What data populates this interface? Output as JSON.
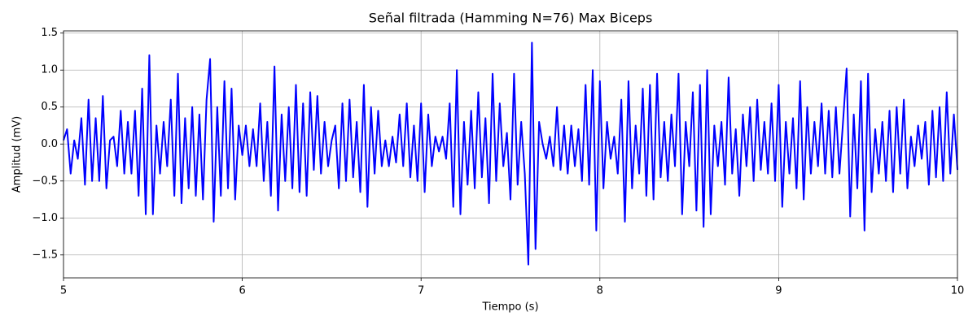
{
  "chart_data": {
    "type": "line",
    "title": "Señal filtrada (Hamming N=76) Max Biceps",
    "x_label": "Tiempo (s)",
    "y_label": "Amplitud (mV)",
    "color": "#0000ff",
    "grid": true,
    "xlim": [
      5,
      10
    ],
    "ylim": [
      -1.81,
      1.53
    ],
    "xticks": [
      5,
      6,
      7,
      8,
      9,
      10
    ],
    "yticks": [
      {
        "value": -1.5,
        "label": "−1.5"
      },
      {
        "value": -1.0,
        "label": "−1.0"
      },
      {
        "value": -0.5,
        "label": "−0.5"
      },
      {
        "value": 0,
        "label": "0.0"
      },
      {
        "value": 0.5,
        "label": "0.5"
      },
      {
        "value": 1.0,
        "label": "1.0"
      },
      {
        "value": 1.5,
        "label": "1.5"
      }
    ],
    "x": [
      5,
      5.02,
      5.04,
      5.06,
      5.08,
      5.1,
      5.12,
      5.14,
      5.16,
      5.18,
      5.2,
      5.22,
      5.24,
      5.26,
      5.28,
      5.3,
      5.32,
      5.34,
      5.36,
      5.38,
      5.4,
      5.42,
      5.44,
      5.46,
      5.48,
      5.5,
      5.52,
      5.54,
      5.56,
      5.58,
      5.6,
      5.62,
      5.64,
      5.66,
      5.68,
      5.7,
      5.72,
      5.74,
      5.76,
      5.78,
      5.8,
      5.82,
      5.84,
      5.86,
      5.88,
      5.9,
      5.92,
      5.94,
      5.96,
      5.98,
      6,
      6.02,
      6.04,
      6.06,
      6.08,
      6.1,
      6.12,
      6.14,
      6.16,
      6.18,
      6.2,
      6.22,
      6.24,
      6.26,
      6.28,
      6.3,
      6.32,
      6.34,
      6.36,
      6.38,
      6.4,
      6.42,
      6.44,
      6.46,
      6.48,
      6.5,
      6.52,
      6.54,
      6.56,
      6.58,
      6.6,
      6.62,
      6.64,
      6.66,
      6.68,
      6.7,
      6.72,
      6.74,
      6.76,
      6.78,
      6.8,
      6.82,
      6.84,
      6.86,
      6.88,
      6.9,
      6.92,
      6.94,
      6.96,
      6.98,
      7,
      7.02,
      7.04,
      7.06,
      7.08,
      7.1,
      7.12,
      7.14,
      7.16,
      7.18,
      7.2,
      7.22,
      7.24,
      7.26,
      7.28,
      7.3,
      7.32,
      7.34,
      7.36,
      7.38,
      7.4,
      7.42,
      7.44,
      7.46,
      7.48,
      7.5,
      7.52,
      7.54,
      7.56,
      7.58,
      7.6,
      7.62,
      7.64,
      7.66,
      7.68,
      7.7,
      7.72,
      7.74,
      7.76,
      7.78,
      7.8,
      7.82,
      7.84,
      7.86,
      7.88,
      7.9,
      7.92,
      7.94,
      7.96,
      7.98,
      8,
      8.02,
      8.04,
      8.06,
      8.08,
      8.1,
      8.12,
      8.14,
      8.16,
      8.18,
      8.2,
      8.22,
      8.24,
      8.26,
      8.28,
      8.3,
      8.32,
      8.34,
      8.36,
      8.38,
      8.4,
      8.42,
      8.44,
      8.46,
      8.48,
      8.5,
      8.52,
      8.54,
      8.56,
      8.58,
      8.6,
      8.62,
      8.64,
      8.66,
      8.68,
      8.7,
      8.72,
      8.74,
      8.76,
      8.78,
      8.8,
      8.82,
      8.84,
      8.86,
      8.88,
      8.9,
      8.92,
      8.94,
      8.96,
      8.98,
      9,
      9.02,
      9.04,
      9.06,
      9.08,
      9.1,
      9.12,
      9.14,
      9.16,
      9.18,
      9.2,
      9.22,
      9.24,
      9.26,
      9.28,
      9.3,
      9.32,
      9.34,
      9.36,
      9.38,
      9.4,
      9.42,
      9.44,
      9.46,
      9.48,
      9.5,
      9.52,
      9.54,
      9.56,
      9.58,
      9.6,
      9.62,
      9.64,
      9.66,
      9.68,
      9.7,
      9.72,
      9.74,
      9.76,
      9.78,
      9.8,
      9.82,
      9.84,
      9.86,
      9.88,
      9.9,
      9.92,
      9.94,
      9.96,
      9.98,
      10
    ],
    "values": [
      0.05,
      0.2,
      -0.4,
      0.05,
      -0.2,
      0.35,
      -0.55,
      0.6,
      -0.5,
      0.35,
      -0.5,
      0.65,
      -0.6,
      0.05,
      0.1,
      -0.3,
      0.45,
      -0.4,
      0.3,
      -0.4,
      0.45,
      -0.7,
      0.75,
      -0.95,
      1.2,
      -0.95,
      0.25,
      -0.4,
      0.3,
      -0.3,
      0.6,
      -0.7,
      0.95,
      -0.8,
      0.35,
      -0.6,
      0.5,
      -0.7,
      0.4,
      -0.75,
      0.6,
      1.15,
      -1.05,
      0.5,
      -0.7,
      0.85,
      -0.6,
      0.75,
      -0.75,
      0.25,
      -0.15,
      0.25,
      -0.3,
      0.2,
      -0.3,
      0.55,
      -0.5,
      0.3,
      -0.7,
      1.05,
      -0.9,
      0.4,
      -0.5,
      0.5,
      -0.6,
      0.8,
      -0.65,
      0.55,
      -0.7,
      0.7,
      -0.35,
      0.65,
      -0.4,
      0.3,
      -0.3,
      0.05,
      0.25,
      -0.6,
      0.55,
      -0.5,
      0.6,
      -0.45,
      0.3,
      -0.65,
      0.8,
      -0.85,
      0.5,
      -0.4,
      0.45,
      -0.3,
      0.05,
      -0.3,
      0.1,
      -0.25,
      0.4,
      -0.3,
      0.55,
      -0.45,
      0.25,
      -0.5,
      0.55,
      -0.65,
      0.4,
      -0.3,
      0.1,
      -0.1,
      0.1,
      -0.2,
      0.55,
      -0.85,
      1.0,
      -0.95,
      0.3,
      -0.55,
      0.45,
      -0.6,
      0.7,
      -0.45,
      0.35,
      -0.8,
      0.95,
      -0.5,
      0.55,
      -0.3,
      0.15,
      -0.75,
      0.95,
      -0.55,
      0.3,
      -0.4,
      -1.63,
      1.37,
      -1.42,
      0.3,
      0.0,
      -0.2,
      0.1,
      -0.3,
      0.5,
      -0.35,
      0.25,
      -0.4,
      0.25,
      -0.3,
      0.2,
      -0.5,
      0.8,
      -0.55,
      1.0,
      -1.17,
      0.85,
      -0.6,
      0.3,
      -0.2,
      0.1,
      -0.4,
      0.6,
      -1.05,
      0.85,
      -0.6,
      0.25,
      -0.4,
      0.75,
      -0.7,
      0.8,
      -0.75,
      0.95,
      -0.45,
      0.3,
      -0.5,
      0.4,
      -0.3,
      0.95,
      -0.95,
      0.3,
      -0.3,
      0.7,
      -0.9,
      0.8,
      -1.12,
      1.0,
      -0.95,
      0.25,
      -0.3,
      0.3,
      -0.55,
      0.9,
      -0.4,
      0.2,
      -0.7,
      0.4,
      -0.3,
      0.5,
      -0.5,
      0.6,
      -0.35,
      0.3,
      -0.4,
      0.55,
      -0.5,
      0.8,
      -0.85,
      0.3,
      -0.4,
      0.35,
      -0.6,
      0.85,
      -0.75,
      0.5,
      -0.4,
      0.3,
      -0.3,
      0.55,
      -0.4,
      0.45,
      -0.45,
      0.5,
      -0.4,
      0.3,
      1.02,
      -0.98,
      0.4,
      -0.6,
      0.85,
      -1.17,
      0.95,
      -0.65,
      0.2,
      -0.4,
      0.3,
      -0.5,
      0.45,
      -0.65,
      0.5,
      -0.4,
      0.6,
      -0.6,
      0.1,
      -0.3,
      0.25,
      -0.2,
      0.3,
      -0.55,
      0.45,
      -0.45,
      0.5,
      -0.5,
      0.7,
      -0.4,
      0.4,
      -0.35
    ]
  }
}
